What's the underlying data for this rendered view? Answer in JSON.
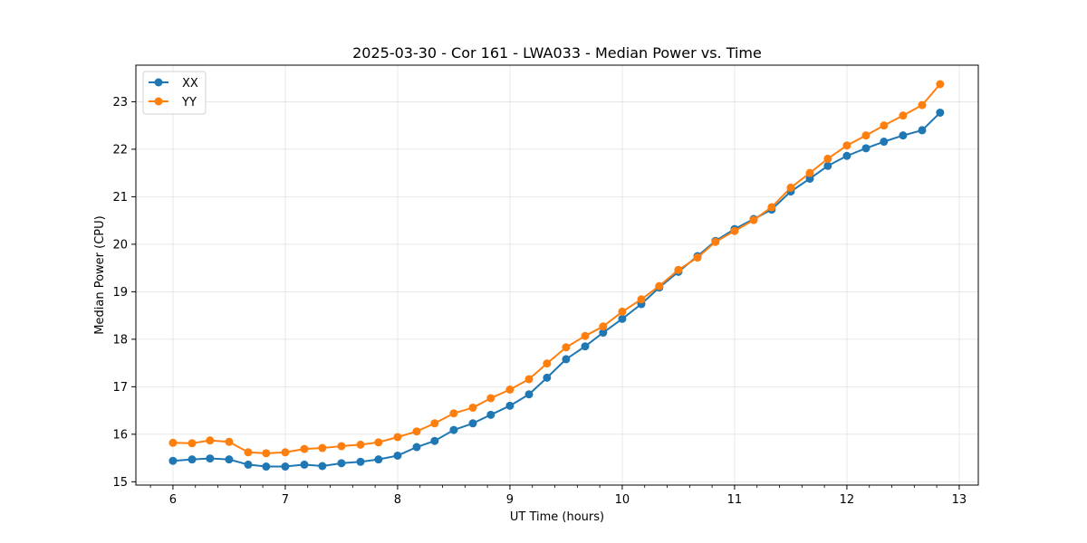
{
  "chart_data": {
    "type": "line",
    "title": "2025-03-30 - Cor 161 - LWA033 - Median Power vs. Time",
    "xlabel": "UT Time (hours)",
    "ylabel": "Median Power (CPU)",
    "xlim": [
      5.67,
      13.17
    ],
    "ylim": [
      14.93,
      23.77
    ],
    "xticks": [
      6,
      7,
      8,
      9,
      10,
      11,
      12,
      13
    ],
    "yticks": [
      15,
      16,
      17,
      18,
      19,
      20,
      21,
      22,
      23
    ],
    "grid": true,
    "legend_position": "top-left",
    "x": [
      6.0,
      6.17,
      6.33,
      6.5,
      6.67,
      6.83,
      7.0,
      7.17,
      7.33,
      7.5,
      7.67,
      7.83,
      8.0,
      8.17,
      8.33,
      8.5,
      8.67,
      8.83,
      9.0,
      9.17,
      9.33,
      9.5,
      9.67,
      9.83,
      10.0,
      10.17,
      10.33,
      10.5,
      10.67,
      10.83,
      11.0,
      11.17,
      11.33,
      11.5,
      11.67,
      11.83,
      12.0,
      12.17,
      12.33,
      12.5,
      12.67,
      12.83
    ],
    "series": [
      {
        "name": "XX",
        "color": "#1f77b4",
        "values": [
          15.44,
          15.47,
          15.49,
          15.47,
          15.36,
          15.32,
          15.32,
          15.36,
          15.33,
          15.39,
          15.42,
          15.47,
          15.55,
          15.73,
          15.86,
          16.09,
          16.23,
          16.41,
          16.6,
          16.84,
          17.19,
          17.58,
          17.85,
          18.14,
          18.43,
          18.74,
          19.09,
          19.42,
          19.75,
          20.07,
          20.32,
          20.53,
          20.73,
          21.11,
          21.38,
          21.65,
          21.86,
          22.02,
          22.16,
          22.29,
          22.4,
          22.77
        ]
      },
      {
        "name": "YY",
        "color": "#ff7f0e",
        "values": [
          15.82,
          15.81,
          15.87,
          15.84,
          15.62,
          15.6,
          15.62,
          15.69,
          15.71,
          15.75,
          15.78,
          15.83,
          15.94,
          16.06,
          16.23,
          16.44,
          16.56,
          16.76,
          16.94,
          17.16,
          17.49,
          17.83,
          18.07,
          18.27,
          18.58,
          18.84,
          19.12,
          19.46,
          19.72,
          20.05,
          20.28,
          20.51,
          20.78,
          21.19,
          21.5,
          21.8,
          22.08,
          22.29,
          22.5,
          22.71,
          22.93,
          23.37
        ]
      }
    ]
  }
}
